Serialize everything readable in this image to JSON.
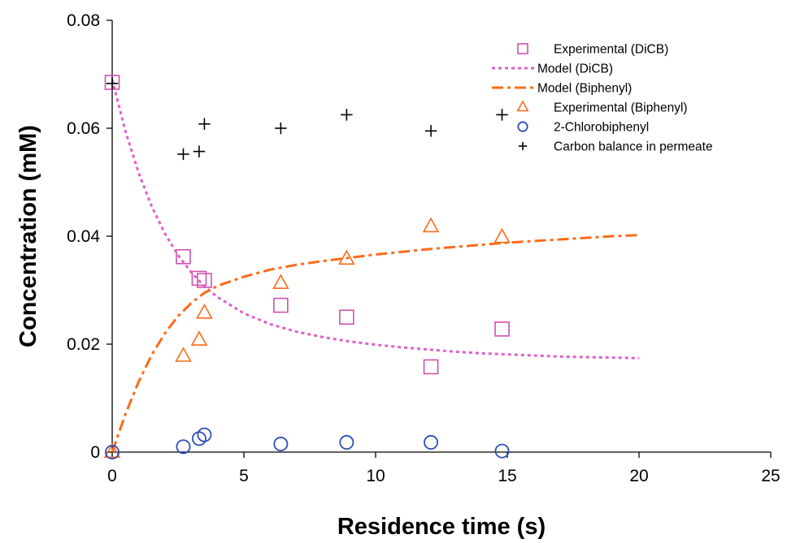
{
  "chart_data": {
    "type": "scatter",
    "xlabel": "Residence time (s)",
    "ylabel": "Concentration (mM)",
    "xlim": [
      0,
      25
    ],
    "ylim": [
      0,
      0.08
    ],
    "xticks": [
      0,
      5,
      10,
      15,
      20,
      25
    ],
    "xtick_labels": [
      "0",
      "5",
      "10",
      "15",
      "20",
      "25"
    ],
    "yticks": [
      0,
      0.02,
      0.04,
      0.06,
      0.08
    ],
    "ytick_labels": [
      "0",
      "0.02",
      "0.04",
      "0.06",
      "0.08"
    ],
    "grid": false,
    "legend_position": "top-right",
    "series": [
      {
        "name": "Experimental (DiCB)",
        "kind": "scatter",
        "marker": "square",
        "color": "#d050b0",
        "x": [
          0,
          2.7,
          3.3,
          3.5,
          6.4,
          8.9,
          12.1,
          14.8
        ],
        "y": [
          0.0685,
          0.0362,
          0.0322,
          0.0318,
          0.0272,
          0.025,
          0.0158,
          0.0228
        ]
      },
      {
        "name": "Model (DiCB)",
        "kind": "line",
        "dash": "dot",
        "color": "#e060c8",
        "x": [
          0,
          0.5,
          1,
          1.5,
          2,
          2.5,
          3,
          3.5,
          4,
          5,
          6,
          7,
          8,
          9,
          10,
          11,
          12,
          13,
          14,
          15,
          16,
          17,
          18,
          19,
          20
        ],
        "y": [
          0.069,
          0.0595,
          0.0518,
          0.0455,
          0.0405,
          0.0365,
          0.0333,
          0.0307,
          0.0287,
          0.0257,
          0.0237,
          0.0223,
          0.0213,
          0.0205,
          0.0199,
          0.0194,
          0.019,
          0.0186,
          0.0183,
          0.0181,
          0.0179,
          0.0177,
          0.0176,
          0.0175,
          0.0174
        ]
      },
      {
        "name": "Model (Biphenyl)",
        "kind": "line",
        "dash": "dash-dot",
        "color": "#ff6a1a",
        "x": [
          0,
          0.5,
          1,
          1.5,
          2,
          2.5,
          3,
          3.5,
          4,
          5,
          6,
          7,
          8,
          9,
          10,
          11,
          12,
          13,
          14,
          15,
          16,
          17,
          18,
          19,
          20
        ],
        "y": [
          0,
          0.007,
          0.013,
          0.018,
          0.022,
          0.0252,
          0.0276,
          0.0295,
          0.0308,
          0.0325,
          0.0338,
          0.0347,
          0.0354,
          0.036,
          0.0366,
          0.0371,
          0.0376,
          0.038,
          0.0384,
          0.0388,
          0.0391,
          0.0394,
          0.0397,
          0.04,
          0.0402
        ]
      },
      {
        "name": "Experimental (Biphenyl)",
        "kind": "scatter",
        "marker": "triangle",
        "color": "#ff6a1a",
        "x": [
          0,
          2.7,
          3.3,
          3.5,
          6.4,
          8.9,
          12.1,
          14.8
        ],
        "y": [
          0,
          0.0178,
          0.0208,
          0.0258,
          0.0313,
          0.0358,
          0.0418,
          0.0398
        ]
      },
      {
        "name": "2-Chlorobiphenyl",
        "kind": "scatter",
        "marker": "circle",
        "color": "#2b4fb8",
        "x": [
          0,
          2.7,
          3.3,
          3.5,
          6.4,
          8.9,
          12.1,
          14.8
        ],
        "y": [
          0,
          0.001,
          0.0025,
          0.0032,
          0.0015,
          0.0018,
          0.0018,
          0.0002
        ]
      },
      {
        "name": "Carbon balance in permeate",
        "kind": "scatter",
        "marker": "plus",
        "color": "#000000",
        "x": [
          0,
          2.7,
          3.3,
          3.5,
          6.4,
          8.9,
          12.1,
          14.8
        ],
        "y": [
          0.0683,
          0.0552,
          0.0557,
          0.0608,
          0.06,
          0.0625,
          0.0595,
          0.0625
        ]
      }
    ]
  }
}
